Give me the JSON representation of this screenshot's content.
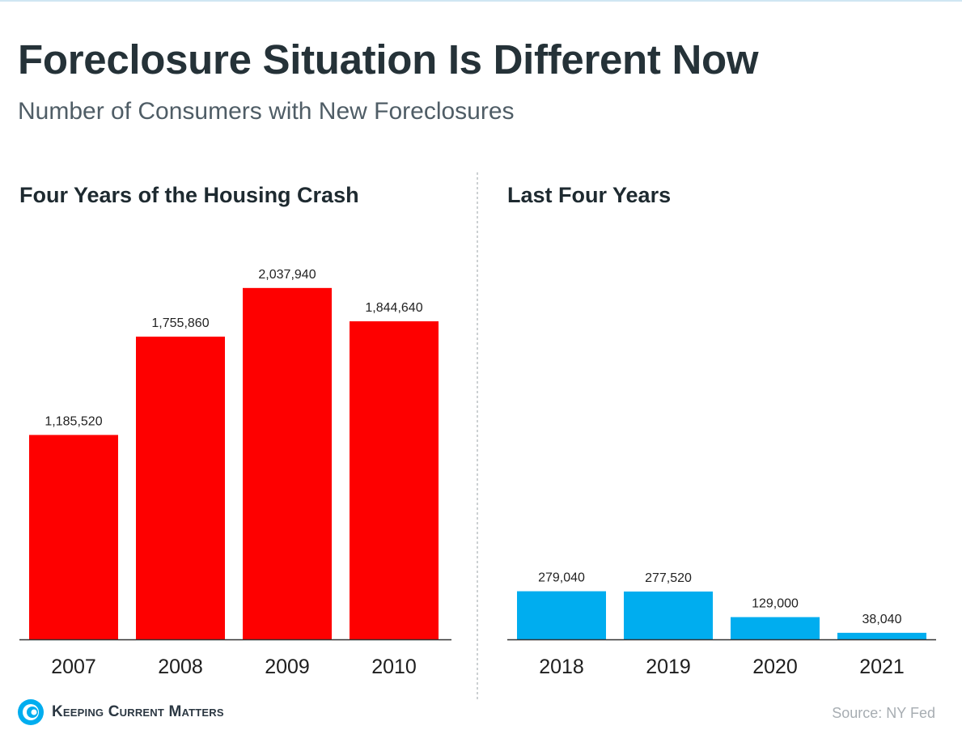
{
  "header": {
    "title": "Foreclosure Situation Is Different Now",
    "subtitle": "Number of Consumers with New Foreclosures"
  },
  "footer": {
    "brand": "Keeping Current Matters",
    "source": "Source: NY Fed"
  },
  "colors": {
    "crash": "#fe0000",
    "recent": "#00adef",
    "divider": "#9aa0a6",
    "axis": "#333333"
  },
  "chart_data": [
    {
      "type": "bar",
      "title": "Four Years of the Housing Crash",
      "categories": [
        "2007",
        "2008",
        "2009",
        "2010"
      ],
      "values": [
        1185520,
        1755860,
        2037940,
        1844640
      ],
      "value_labels": [
        "1,185,520",
        "1,755,860",
        "2,037,940",
        "1,844,640"
      ],
      "xlabel": "",
      "ylabel": "",
      "ylim": [
        0,
        2300000
      ]
    },
    {
      "type": "bar",
      "title": "Last Four Years",
      "categories": [
        "2018",
        "2019",
        "2020",
        "2021"
      ],
      "values": [
        279040,
        277520,
        129000,
        38040
      ],
      "value_labels": [
        "279,040",
        "277,520",
        "129,000",
        "38,040"
      ],
      "xlabel": "",
      "ylabel": "",
      "ylim": [
        0,
        2300000
      ]
    }
  ]
}
